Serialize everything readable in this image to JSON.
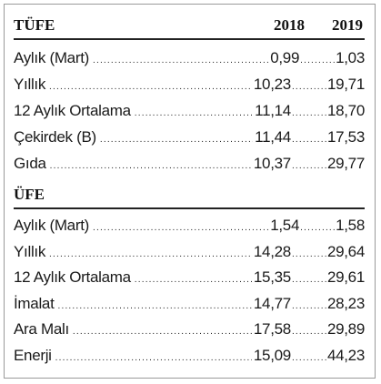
{
  "tufe": {
    "title": "TÜFE",
    "year1": "2018",
    "year2": "2019",
    "rows": [
      {
        "label": " Aylık (Mart)",
        "v2018": "0,99",
        "v2019": "1,03"
      },
      {
        "label": "Yıllık",
        "v2018": "10,23",
        "v2019": "19,71"
      },
      {
        "label": "12 Aylık Ortalama",
        "v2018": "11,14",
        "v2019": "18,70"
      },
      {
        "label": "Çekirdek (B)",
        "v2018": "11,44",
        "v2019": "17,53"
      },
      {
        "label": "Gıda",
        "v2018": "10,37",
        "v2019": "29,77"
      }
    ]
  },
  "ufe": {
    "title": "ÜFE",
    "rows": [
      {
        "label": "Aylık  (Mart)",
        "v2018": "1,54",
        "v2019": "1,58"
      },
      {
        "label": "Yıllık",
        "v2018": "14,28",
        "v2019": "29,64"
      },
      {
        "label": "12 Aylık Ortalama",
        "v2018": "15,35",
        "v2019": "29,61"
      },
      {
        "label": "İmalat",
        "v2018": "14,77",
        "v2019": "28,23"
      },
      {
        "label": "Ara Malı",
        "v2018": "17,58",
        "v2019": "29,89"
      },
      {
        "label": "Enerji",
        "v2018": "15,09",
        "v2019": "44,23"
      }
    ]
  }
}
